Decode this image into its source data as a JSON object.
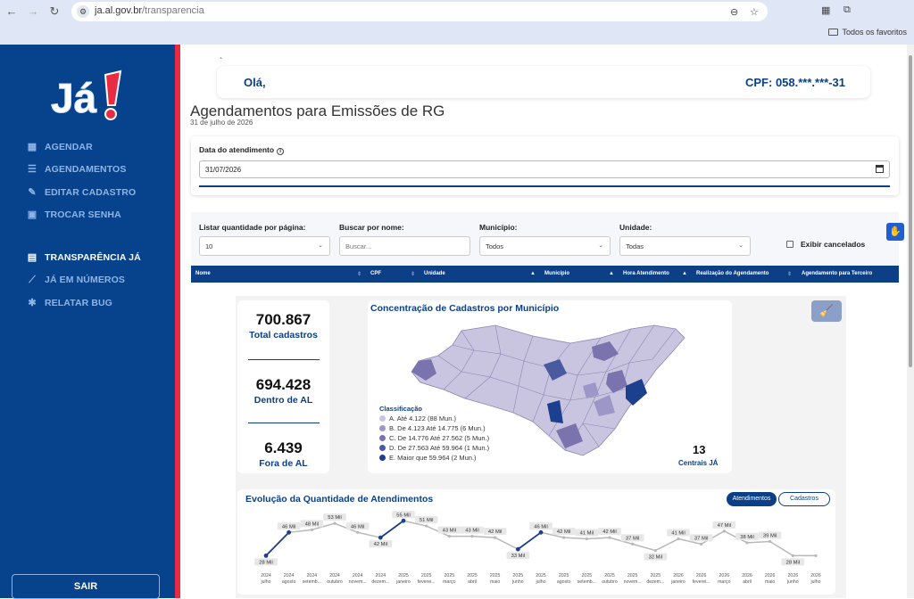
{
  "browser": {
    "url_host": "ja.al.gov.br",
    "url_path": "/transparencia",
    "bookmarks_label": "Todos os favoritos"
  },
  "sidebar": {
    "logo_text": "Já!",
    "items": [
      {
        "label": "AGENDAR",
        "icon": "calendar-icon",
        "active": false
      },
      {
        "label": "AGENDAMENTOS",
        "icon": "list-check-icon",
        "active": false
      },
      {
        "label": "EDITAR CADASTRO",
        "icon": "edit-icon",
        "active": false
      },
      {
        "label": "TROCAR SENHA",
        "icon": "lock-icon",
        "active": false
      },
      {
        "label": "TRANSPARÊNCIA JÁ",
        "icon": "document-icon",
        "active": true
      },
      {
        "label": "JÁ EM NÚMEROS",
        "icon": "chart-line-icon",
        "active": false
      },
      {
        "label": "RELATAR BUG",
        "icon": "bug-icon",
        "active": false
      }
    ],
    "logout_label": "SAIR"
  },
  "header": {
    "greeting": "Olá,",
    "cpf": "CPF: 058.***.***-31"
  },
  "page": {
    "title": "Agendamentos para Emissões de RG",
    "date": "31 de julho de 2026"
  },
  "date_filter": {
    "label": "Data do atendimento",
    "value": "31/07/2026"
  },
  "filters": {
    "per_page_label": "Listar quantidade por página:",
    "per_page_value": "10",
    "search_label": "Buscar por nome:",
    "search_placeholder": "Buscar...",
    "municipio_label": "Município:",
    "municipio_value": "Todos",
    "unidade_label": "Unidade:",
    "unidade_value": "Todas",
    "show_cancelled_label": "Exibir cancelados"
  },
  "table": {
    "columns": [
      "Nome",
      "CPF",
      "Unidade",
      "Município",
      "Hora Atendimento",
      "Realização do Agendamento",
      "Agendamento para Terceiro"
    ]
  },
  "dashboard": {
    "kpis": [
      {
        "value": "700.867",
        "label": "Total cadastros"
      },
      {
        "value": "694.428",
        "label": "Dentro de AL"
      },
      {
        "value": "6.439",
        "label": "Fora de AL"
      }
    ],
    "map": {
      "title": "Concentração de Cadastros por Município",
      "legend_title": "Classificação",
      "legend": [
        {
          "label": "A. Até 4.122 (88 Mun.)",
          "color": "#c9c5e1"
        },
        {
          "label": "B. De 4.123 Até 14.775 (6 Mun.)",
          "color": "#9d97c8"
        },
        {
          "label": "C. De 14.776 Até 27.562 (5 Mun.)",
          "color": "#7a73ad"
        },
        {
          "label": "D. De 27.563 Até 59.964 (1 Mun.)",
          "color": "#4a5a9e"
        },
        {
          "label": "E. Maior que 59.964 (2 Mun.)",
          "color": "#1c3f8e"
        }
      ],
      "centrais_value": "13",
      "centrais_label": "Centrais JÁ"
    },
    "evolution": {
      "title": "Evolução da Quantidade de Atendimentos",
      "toggle_on": "Atendimentos",
      "toggle_off": "Cadastros"
    }
  },
  "chart_data": {
    "type": "line",
    "title": "Evolução da Quantidade de Atendimentos",
    "x": [
      "2024 julho",
      "2024 agosto",
      "2024 setemb...",
      "2024 outubro",
      "2024 novem...",
      "2024 dezem...",
      "2025 janeiro",
      "2025 feverei...",
      "2025 março",
      "2025 abril",
      "2025 maio",
      "2025 junho",
      "2025 julho",
      "2025 agosto",
      "2025 setemb...",
      "2025 outubro",
      "2025 novem...",
      "2025 dezem...",
      "2026 janeiro",
      "2026 feverei...",
      "2026 março",
      "2026 abril",
      "2026 maio",
      "2026 junho",
      "2026 julho"
    ],
    "series": [
      {
        "values": [
          28,
          46,
          48,
          53,
          46,
          42,
          55,
          51,
          43,
          43,
          42,
          33,
          46,
          42,
          41,
          42,
          37,
          32,
          41,
          37,
          47,
          38,
          39,
          28,
          null
        ],
        "color": "#1c3f8e"
      },
      {
        "values": [
          null,
          null,
          null,
          null,
          null,
          null,
          null,
          null,
          null,
          null,
          null,
          null,
          null,
          null,
          null,
          null,
          null,
          null,
          null,
          null,
          null,
          null,
          null,
          null,
          28
        ],
        "color": "#b8b8b8"
      }
    ],
    "value_labels": [
      "28 Mil",
      "46 Mil",
      "48 Mil",
      "53 Mil",
      "46 Mil",
      "42 Mil",
      "55 Mil",
      "51 Mil",
      "43 Mil",
      "43 Mil",
      "42 Mil",
      "33 Mil",
      "46 Mil",
      "42 Mil",
      "41 Mil",
      "42 Mil",
      "37 Mil",
      "32 Mil",
      "41 Mil",
      "37 Mil",
      "47 Mil",
      "38 Mil",
      "39 Mil",
      "28 Mil"
    ],
    "ylim": [
      20,
      60
    ]
  }
}
